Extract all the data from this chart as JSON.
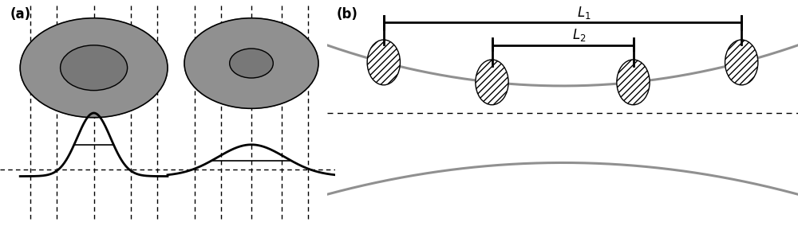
{
  "fig_width": 10.0,
  "fig_height": 2.84,
  "dpi": 100,
  "bg_color": "#ffffff",
  "label_a": "(a)",
  "label_b": "(b)",
  "circle_outer_color_L": "#909090",
  "circle_inner_color_L": "#787878",
  "circle_outer_color_R": "#909090",
  "circle_inner_color_R": "#787878",
  "dashed_color": "#000000",
  "curve_color": "#909090",
  "ellipse_hatch": "////",
  "L1_label": "L$_1$",
  "L2_label": "L$_2$"
}
